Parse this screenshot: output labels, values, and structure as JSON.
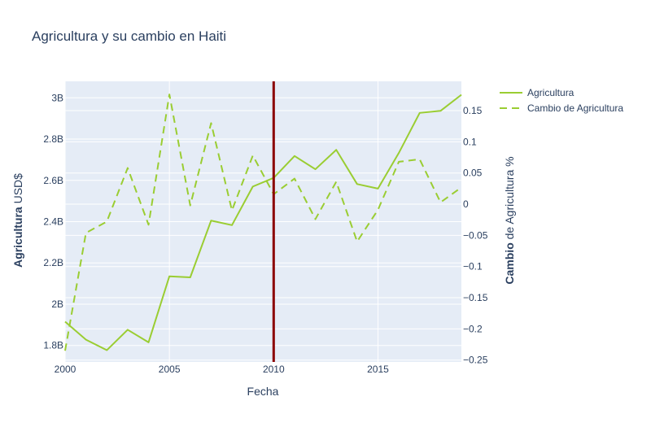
{
  "chart_data": {
    "type": "line",
    "title": "Agricultura y su cambio en Haiti",
    "xlabel": "Fecha",
    "ylabel_bold": "Agricultura",
    "ylabel_rest": " USD$",
    "y2label_bold": "Cambio",
    "y2label_rest": " de Agricultura %",
    "x": [
      2000,
      2001,
      2002,
      2003,
      2004,
      2005,
      2006,
      2007,
      2008,
      2009,
      2010,
      2011,
      2012,
      2013,
      2014,
      2015,
      2016,
      2017,
      2018,
      2019
    ],
    "series": [
      {
        "name": "Agricultura",
        "axis": "y",
        "dash": "solid",
        "values": [
          1915000000.0,
          1828000000.0,
          1777000000.0,
          1876000000.0,
          1815000000.0,
          2135000000.0,
          2130000000.0,
          2405000000.0,
          2383000000.0,
          2570000000.0,
          2612000000.0,
          2718000000.0,
          2654000000.0,
          2748000000.0,
          2582000000.0,
          2560000000.0,
          2733000000.0,
          2927000000.0,
          2937000000.0,
          3015000000.0
        ]
      },
      {
        "name": "Cambio de Agricultura",
        "axis": "y2",
        "dash": "dash",
        "values": [
          -0.235,
          -0.046,
          -0.028,
          0.058,
          -0.033,
          0.176,
          -0.002,
          0.13,
          -0.01,
          0.078,
          0.016,
          0.041,
          -0.024,
          0.036,
          -0.06,
          -0.009,
          0.068,
          0.072,
          0.003,
          0.027
        ]
      }
    ],
    "xlim": [
      2000,
      2019
    ],
    "ylim": [
      1720000000.0,
      3080000000.0
    ],
    "y2lim": [
      -0.253,
      0.197
    ],
    "x_ticks": [
      2000,
      2005,
      2010,
      2015
    ],
    "x_tick_labels": [
      "2000",
      "2005",
      "2010",
      "2015"
    ],
    "y_ticks": [
      1800000000.0,
      2000000000.0,
      2200000000.0,
      2400000000.0,
      2600000000.0,
      2800000000.0,
      3000000000.0
    ],
    "y_tick_labels": [
      "1.8B",
      "2B",
      "2.2B",
      "2.4B",
      "2.6B",
      "2.8B",
      "3B"
    ],
    "y2_ticks": [
      -0.25,
      -0.2,
      -0.15,
      -0.1,
      -0.05,
      0,
      0.05,
      0.1,
      0.15
    ],
    "y2_tick_labels": [
      "−0.25",
      "−0.2",
      "−0.15",
      "−0.1",
      "−0.05",
      "0",
      "0.05",
      "0.1",
      "0.15"
    ],
    "vline_x": 2010,
    "grid": true,
    "legend_position": "top-right",
    "colors": {
      "line": "#9acd32",
      "vline": "#8b0000",
      "plot_bg": "#e5ecf6",
      "grid": "#ffffff",
      "text": "#2a3f5f"
    }
  }
}
